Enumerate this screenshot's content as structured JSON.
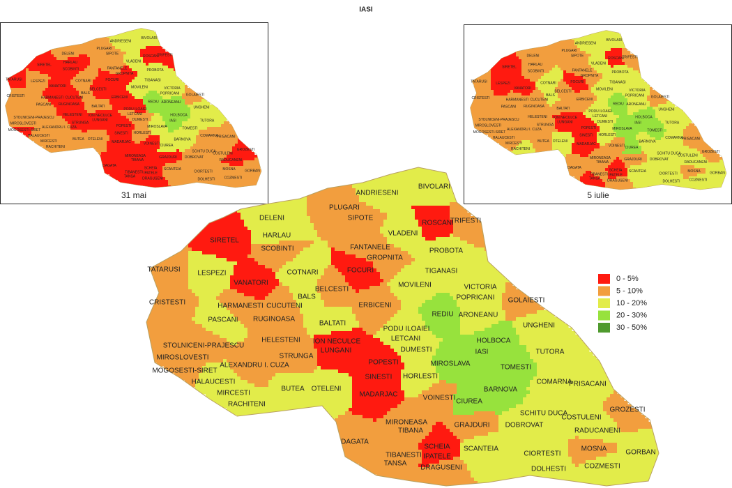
{
  "title": "IASI",
  "insets": [
    {
      "caption": "31 mai"
    },
    {
      "caption": "5 iulie"
    }
  ],
  "legend": [
    {
      "label": "0 - 5%",
      "color": "#ff1a10"
    },
    {
      "label": "5 - 10%",
      "color": "#f29e3e"
    },
    {
      "label": "10 - 20%",
      "color": "#e2ec4a"
    },
    {
      "label": "20 - 30%",
      "color": "#97e23d"
    },
    {
      "label": "30 - 50%",
      "color": "#4f9a2e"
    }
  ],
  "communes": [
    {
      "name": "ANDRIESENI",
      "classes": [
        2,
        2,
        2
      ]
    },
    {
      "name": "BIVOLARI",
      "classes": [
        2,
        2,
        2
      ]
    },
    {
      "name": "PLUGARI",
      "classes": [
        1,
        1,
        1
      ]
    },
    {
      "name": "DELENI",
      "classes": [
        2,
        1,
        1
      ]
    },
    {
      "name": "SIPOTE",
      "classes": [
        1,
        1,
        1
      ]
    },
    {
      "name": "ROSCANI",
      "classes": [
        0,
        0,
        0
      ]
    },
    {
      "name": "TRIFESTI",
      "classes": [
        1,
        0,
        1
      ]
    },
    {
      "name": "HARLAU",
      "classes": [
        2,
        0,
        1
      ]
    },
    {
      "name": "VLADENI",
      "classes": [
        2,
        2,
        2
      ]
    },
    {
      "name": "SIRETEL",
      "classes": [
        0,
        0,
        0
      ]
    },
    {
      "name": "SCOBINTI",
      "classes": [
        1,
        0,
        1
      ]
    },
    {
      "name": "FANTANELE",
      "classes": [
        1,
        1,
        1
      ]
    },
    {
      "name": "PROBOTA",
      "classes": [
        2,
        2,
        2
      ]
    },
    {
      "name": "GROPNITA",
      "classes": [
        1,
        0,
        1
      ]
    },
    {
      "name": "TATARUSI",
      "classes": [
        1,
        0,
        1
      ]
    },
    {
      "name": "LESPEZI",
      "classes": [
        2,
        1,
        0
      ]
    },
    {
      "name": "COTNARI",
      "classes": [
        2,
        1,
        2
      ]
    },
    {
      "name": "FOCURI",
      "classes": [
        0,
        0,
        0
      ]
    },
    {
      "name": "TIGANASI",
      "classes": [
        2,
        2,
        2
      ]
    },
    {
      "name": "VANATORI",
      "classes": [
        0,
        0,
        0
      ]
    },
    {
      "name": "MOVILENI",
      "classes": [
        2,
        2,
        2
      ]
    },
    {
      "name": "VICTORIA",
      "classes": [
        2,
        2,
        2
      ]
    },
    {
      "name": "BELCESTI",
      "classes": [
        1,
        0,
        1
      ]
    },
    {
      "name": "BALS",
      "classes": [
        2,
        1,
        2
      ]
    },
    {
      "name": "POPRICANI",
      "classes": [
        2,
        2,
        2
      ]
    },
    {
      "name": "GOLAIESTI",
      "classes": [
        1,
        1,
        1
      ]
    },
    {
      "name": "CRISTESTI",
      "classes": [
        1,
        1,
        1
      ]
    },
    {
      "name": "HARMANESTI",
      "classes": [
        1,
        0,
        1
      ]
    },
    {
      "name": "CUCUTENI",
      "classes": [
        1,
        0,
        1
      ]
    },
    {
      "name": "ERBICENI",
      "classes": [
        1,
        0,
        1
      ]
    },
    {
      "name": "REDIU",
      "classes": [
        3,
        3,
        3
      ]
    },
    {
      "name": "ARONEANU",
      "classes": [
        2,
        3,
        2
      ]
    },
    {
      "name": "UNGHENI",
      "classes": [
        2,
        2,
        2
      ]
    },
    {
      "name": "PASCANI",
      "classes": [
        2,
        1,
        1
      ]
    },
    {
      "name": "RUGINOASA",
      "classes": [
        1,
        0,
        1
      ]
    },
    {
      "name": "BALTATI",
      "classes": [
        2,
        1,
        1
      ]
    },
    {
      "name": "PODU ILOAIEI",
      "classes": [
        2,
        0,
        2
      ]
    },
    {
      "name": "LETCANI",
      "classes": [
        2,
        1,
        2
      ]
    },
    {
      "name": "HOLBOCA",
      "classes": [
        3,
        3,
        3
      ]
    },
    {
      "name": "ION NECULCE",
      "classes": [
        0,
        0,
        0
      ]
    },
    {
      "name": "LUNGANI",
      "classes": [
        0,
        0,
        0
      ]
    },
    {
      "name": "DUMESTI",
      "classes": [
        2,
        1,
        2
      ]
    },
    {
      "name": "IASI",
      "classes": [
        3,
        3,
        3
      ]
    },
    {
      "name": "TUTORA",
      "classes": [
        2,
        2,
        2
      ]
    },
    {
      "name": "STOLNICENI-PRAJESCU",
      "classes": [
        1,
        1,
        1
      ]
    },
    {
      "name": "HELESTENI",
      "classes": [
        1,
        0,
        1
      ]
    },
    {
      "name": "MIROSLOVESTI",
      "classes": [
        1,
        1,
        1
      ]
    },
    {
      "name": "STRUNGA",
      "classes": [
        1,
        0,
        1
      ]
    },
    {
      "name": "POPESTI",
      "classes": [
        0,
        0,
        0
      ]
    },
    {
      "name": "MIROSLAVA",
      "classes": [
        3,
        2,
        3
      ]
    },
    {
      "name": "TOMESTI",
      "classes": [
        3,
        2,
        3
      ]
    },
    {
      "name": "ALEXANDRU I. CUZA",
      "classes": [
        1,
        1,
        1
      ]
    },
    {
      "name": "MOGOSESTI-SIRET",
      "classes": [
        1,
        0,
        1
      ]
    },
    {
      "name": "HALAUCESTI",
      "classes": [
        2,
        1,
        1
      ]
    },
    {
      "name": "SINESTI",
      "classes": [
        0,
        0,
        0
      ]
    },
    {
      "name": "HORLESTI",
      "classes": [
        2,
        1,
        2
      ]
    },
    {
      "name": "BARNOVA",
      "classes": [
        3,
        2,
        2
      ]
    },
    {
      "name": "COMARNA",
      "classes": [
        2,
        1,
        2
      ]
    },
    {
      "name": "PRISACANI",
      "classes": [
        2,
        1,
        1
      ]
    },
    {
      "name": "BUTEA",
      "classes": [
        2,
        1,
        1
      ]
    },
    {
      "name": "OTELENI",
      "classes": [
        2,
        1,
        2
      ]
    },
    {
      "name": "MIRCESTI",
      "classes": [
        2,
        1,
        1
      ]
    },
    {
      "name": "RACHITENI",
      "classes": [
        2,
        1,
        2
      ]
    },
    {
      "name": "MADARJAC",
      "classes": [
        0,
        0,
        0
      ]
    },
    {
      "name": "VOINESTI",
      "classes": [
        1,
        0,
        1
      ]
    },
    {
      "name": "CIUREA",
      "classes": [
        3,
        2,
        3
      ]
    },
    {
      "name": "SCHITU DUCA",
      "classes": [
        2,
        1,
        2
      ]
    },
    {
      "name": "GROZESTI",
      "classes": [
        1,
        0,
        1
      ]
    },
    {
      "name": "COSTULENI",
      "classes": [
        2,
        1,
        2
      ]
    },
    {
      "name": "MIRONEASA",
      "classes": [
        1,
        0,
        1
      ]
    },
    {
      "name": "GRAJDURI",
      "classes": [
        1,
        0,
        1
      ]
    },
    {
      "name": "DOBROVAT",
      "classes": [
        2,
        1,
        2
      ]
    },
    {
      "name": "TIBANA",
      "classes": [
        1,
        0,
        1
      ]
    },
    {
      "name": "RADUCANENI",
      "classes": [
        2,
        0,
        2
      ]
    },
    {
      "name": "DAGATA",
      "classes": [
        1,
        0,
        1
      ]
    },
    {
      "name": "SCHEIA",
      "classes": [
        0,
        0,
        0
      ]
    },
    {
      "name": "SCANTEIA",
      "classes": [
        2,
        1,
        2
      ]
    },
    {
      "name": "MOSNA",
      "classes": [
        1,
        1,
        1
      ]
    },
    {
      "name": "TIBANESTI",
      "classes": [
        1,
        0,
        1
      ]
    },
    {
      "name": "IPATELE",
      "classes": [
        0,
        0,
        0
      ]
    },
    {
      "name": "CIORTESTI",
      "classes": [
        2,
        1,
        2
      ]
    },
    {
      "name": "GORBAN",
      "classes": [
        2,
        1,
        2
      ]
    },
    {
      "name": "TANSA",
      "classes": [
        1,
        0,
        0
      ]
    },
    {
      "name": "DRAGUSENI",
      "classes": [
        1,
        0,
        1
      ]
    },
    {
      "name": "DOLHESTI",
      "classes": [
        2,
        1,
        2
      ]
    },
    {
      "name": "COZMESTI",
      "classes": [
        2,
        1,
        2
      ]
    }
  ]
}
